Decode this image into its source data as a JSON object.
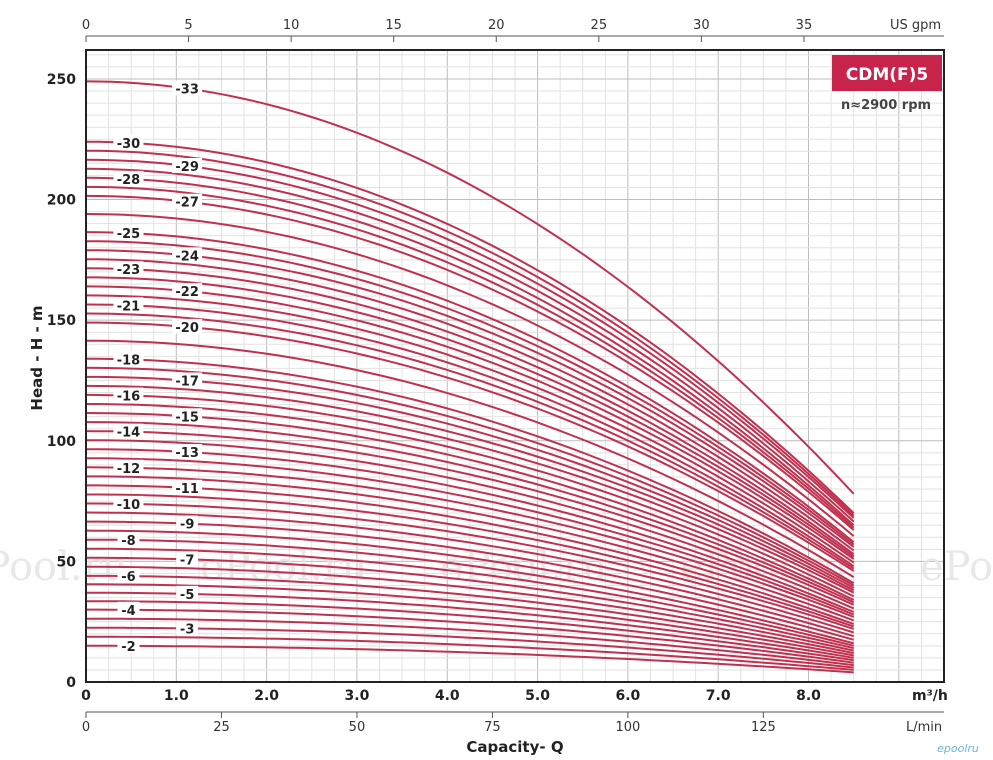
{
  "chart_data": {
    "type": "line",
    "title": "",
    "badge": "CDM(F)5",
    "speed_label": "n≈2900 rpm",
    "xlabel": "Capacity- Q",
    "ylabel": "Head - H - m",
    "xlim": [
      0,
      9.5
    ],
    "ylim": [
      0,
      262
    ],
    "x_max_curve": 8.5,
    "grid": true,
    "color": "#c0304f",
    "x_ticks": [
      "0",
      "1.0",
      "2.0",
      "3.0",
      "4.0",
      "5.0",
      "6.0",
      "7.0",
      "8.0"
    ],
    "x_unit": "m³/h",
    "y_ticks": [
      "0",
      "50",
      "100",
      "150",
      "200",
      "250"
    ],
    "top_axis": {
      "unit": "US gpm",
      "ticks": [
        "0",
        "5",
        "10",
        "15",
        "20",
        "25",
        "30",
        "35"
      ]
    },
    "bottom_axis": {
      "unit": "L/min",
      "ticks": [
        "0",
        "25",
        "50",
        "75",
        "100",
        "125"
      ]
    },
    "series": [
      {
        "name": "-2",
        "values": [
          15,
          4
        ]
      },
      {
        "name": "-3",
        "values": [
          22.5,
          6
        ]
      },
      {
        "name": "-4",
        "values": [
          30,
          8
        ]
      },
      {
        "name": "-5",
        "values": [
          37,
          10
        ]
      },
      {
        "name": "-6",
        "values": [
          44,
          12
        ]
      },
      {
        "name": "-7",
        "values": [
          51.5,
          14
        ]
      },
      {
        "name": "-8",
        "values": [
          59,
          16
        ]
      },
      {
        "name": "-9",
        "values": [
          66.5,
          19
        ]
      },
      {
        "name": "-10",
        "values": [
          74,
          22
        ]
      },
      {
        "name": "-11",
        "values": [
          81.5,
          24
        ]
      },
      {
        "name": "-12",
        "values": [
          89,
          27
        ]
      },
      {
        "name": "-13",
        "values": [
          96.5,
          29
        ]
      },
      {
        "name": "-14",
        "values": [
          104,
          32
        ]
      },
      {
        "name": "-15",
        "values": [
          111.5,
          34
        ]
      },
      {
        "name": "-16",
        "values": [
          119,
          37
        ]
      },
      {
        "name": "-17",
        "values": [
          126.5,
          39
        ]
      },
      {
        "name": "-18",
        "values": [
          134,
          41
        ]
      },
      {
        "name": "-20",
        "values": [
          149,
          46
        ]
      },
      {
        "name": "-21",
        "values": [
          156.5,
          48
        ]
      },
      {
        "name": "-22",
        "values": [
          164,
          51
        ]
      },
      {
        "name": "-23",
        "values": [
          171.5,
          53
        ]
      },
      {
        "name": "-24",
        "values": [
          179,
          56
        ]
      },
      {
        "name": "-25",
        "values": [
          186.5,
          58
        ]
      },
      {
        "name": "-27",
        "values": [
          201.5,
          63
        ]
      },
      {
        "name": "-28",
        "values": [
          209,
          65
        ]
      },
      {
        "name": "-29",
        "values": [
          216.5,
          68
        ]
      },
      {
        "name": "-30",
        "values": [
          224,
          70
        ]
      },
      {
        "name": "-33",
        "values": [
          249,
          78
        ]
      }
    ],
    "labeled_curves": [
      {
        "name": "-2",
        "text": "-2",
        "side": "left"
      },
      {
        "name": "-3",
        "text": "-3",
        "side": "right"
      },
      {
        "name": "-4",
        "text": "-4",
        "side": "left"
      },
      {
        "name": "-5",
        "text": "-5",
        "side": "right"
      },
      {
        "name": "-6",
        "text": "-6",
        "side": "left"
      },
      {
        "name": "-7",
        "text": "-7",
        "side": "right"
      },
      {
        "name": "-8",
        "text": "-8",
        "side": "left"
      },
      {
        "name": "-9",
        "text": "-9",
        "side": "right"
      },
      {
        "name": "-10",
        "text": "-10",
        "side": "left"
      },
      {
        "name": "-11",
        "text": "-11",
        "side": "right"
      },
      {
        "name": "-12",
        "text": "-12",
        "side": "left"
      },
      {
        "name": "-13",
        "text": "-13",
        "side": "right"
      },
      {
        "name": "-14",
        "text": "-14",
        "side": "left"
      },
      {
        "name": "-15",
        "text": "-15",
        "side": "right"
      },
      {
        "name": "-16",
        "text": "-16",
        "side": "left"
      },
      {
        "name": "-17",
        "text": "-17",
        "side": "right"
      },
      {
        "name": "-18",
        "text": "-18",
        "side": "left"
      },
      {
        "name": "-20",
        "text": "-20",
        "side": "right"
      },
      {
        "name": "-21",
        "text": "-21",
        "side": "left"
      },
      {
        "name": "-22",
        "text": "-22",
        "side": "right"
      },
      {
        "name": "-23",
        "text": "-23",
        "side": "left"
      },
      {
        "name": "-24",
        "text": "-24",
        "side": "right"
      },
      {
        "name": "-25",
        "text": "-25",
        "side": "left"
      },
      {
        "name": "-27",
        "text": "-27",
        "side": "right"
      },
      {
        "name": "-28",
        "text": "-28",
        "side": "left"
      },
      {
        "name": "-29",
        "text": "-29",
        "side": "right"
      },
      {
        "name": "-30",
        "text": "-30",
        "side": "left"
      },
      {
        "name": "-33",
        "text": "-33",
        "side": "right"
      }
    ],
    "unlabeled_curves": [
      {
        "values": [
          18.75,
          5
        ]
      },
      {
        "values": [
          26.25,
          7
        ]
      },
      {
        "values": [
          33.5,
          9
        ]
      },
      {
        "values": [
          40.5,
          11
        ]
      },
      {
        "values": [
          47.75,
          13
        ]
      },
      {
        "values": [
          55.25,
          15
        ]
      },
      {
        "values": [
          62.75,
          17.5
        ]
      },
      {
        "values": [
          70.25,
          20.5
        ]
      },
      {
        "values": [
          77.75,
          23
        ]
      },
      {
        "values": [
          85.25,
          25.5
        ]
      },
      {
        "values": [
          92.75,
          28
        ]
      },
      {
        "values": [
          100.25,
          30.5
        ]
      },
      {
        "values": [
          107.75,
          33
        ]
      },
      {
        "values": [
          115.25,
          35.5
        ]
      },
      {
        "values": [
          122.75,
          38
        ]
      },
      {
        "values": [
          130.25,
          40
        ]
      },
      {
        "values": [
          141.5,
          43.5
        ]
      },
      {
        "values": [
          152.75,
          47
        ]
      },
      {
        "values": [
          160.25,
          49.5
        ]
      },
      {
        "values": [
          167.75,
          52
        ]
      },
      {
        "values": [
          175.25,
          54.5
        ]
      },
      {
        "values": [
          182.75,
          57
        ]
      },
      {
        "values": [
          194,
          60.5
        ]
      },
      {
        "values": [
          205.25,
          64
        ]
      },
      {
        "values": [
          212.75,
          66.5
        ]
      },
      {
        "values": [
          220.25,
          69
        ]
      }
    ]
  },
  "watermark": "ePool.ru",
  "footer_logo": "epoolru"
}
